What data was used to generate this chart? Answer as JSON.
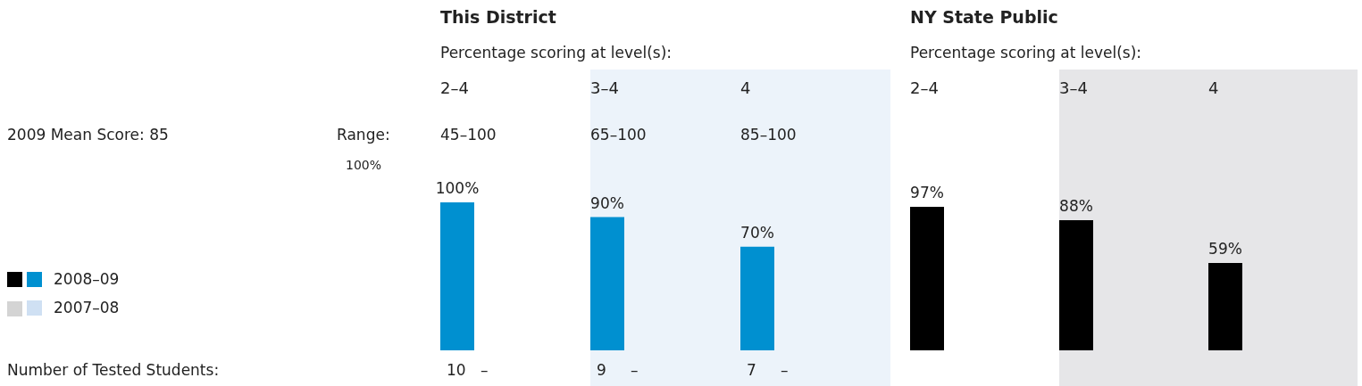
{
  "chart_data": [
    {
      "type": "bar",
      "title": "This District",
      "subtitle": "Percentage scoring at level(s):",
      "categories": [
        "2–4",
        "3–4",
        "4"
      ],
      "series": [
        {
          "name": "2008–09",
          "color": "#0090d0",
          "values": [
            100,
            90,
            70
          ],
          "value_labels": [
            "100%",
            "90%",
            "70%"
          ]
        },
        {
          "name": "2007–08",
          "color": "#cfe0f3",
          "values": [
            null,
            null,
            null
          ]
        }
      ],
      "legend": "left",
      "bands": [
        {
          "axis": "x",
          "from": "3–4",
          "to": "4",
          "color": "#ecf3fa"
        }
      ],
      "annotations": [
        "2009 Mean Score: 85",
        "Range:",
        "Number of Tested Students:",
        "100%",
        "45–100",
        "65–100",
        "85–100",
        "10",
        "9",
        "7",
        "–",
        "–",
        "–"
      ]
    },
    {
      "type": "bar",
      "title": "NY State Public",
      "subtitle": "Percentage scoring at level(s):",
      "categories": [
        "2–4",
        "3–4",
        "4"
      ],
      "series": [
        {
          "color": "#000000",
          "values": [
            97,
            88,
            59
          ],
          "value_labels": [
            "97%",
            "88%",
            "59%"
          ]
        },
        {
          "color": "#d4d4d4",
          "values": [
            null,
            null,
            null
          ]
        }
      ],
      "tick_labels": "x",
      "bands": [
        {
          "axis": "x",
          "from": "3–4",
          "to": "4",
          "color": "#e6e6e8"
        }
      ]
    }
  ]
}
